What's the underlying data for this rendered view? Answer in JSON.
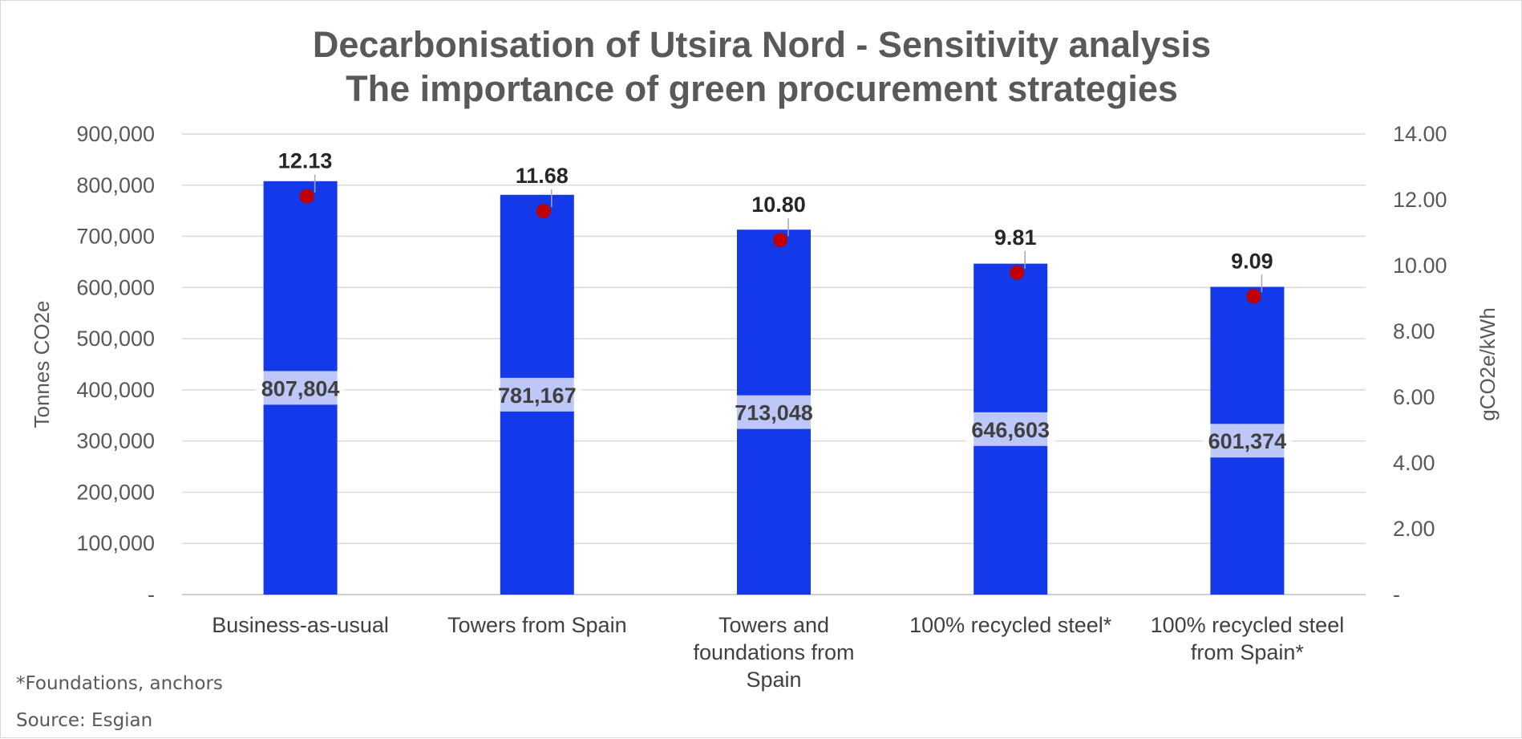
{
  "chart_data": {
    "type": "bar",
    "title": [
      "Decarbonisation of Utsira Nord - Sensitivity analysis",
      "The importance of green procurement strategies"
    ],
    "categories": [
      [
        "Business-as-usual"
      ],
      [
        "Towers from Spain"
      ],
      [
        "Towers and",
        "foundations from",
        "Spain"
      ],
      [
        "100% recycled steel*"
      ],
      [
        "100% recycled steel",
        "from Spain*"
      ]
    ],
    "series": [
      {
        "type": "bar",
        "axis": "left",
        "values": [
          807804,
          781167,
          713048,
          646603,
          601374
        ],
        "labels": [
          "807,804",
          "781,167",
          "713,048",
          "646,603",
          "601,374"
        ],
        "color": "#1439e8"
      },
      {
        "type": "scatter",
        "axis": "right",
        "values": [
          12.13,
          11.68,
          10.8,
          9.81,
          9.09
        ],
        "labels": [
          "12.13",
          "11.68",
          "10.80",
          "9.81",
          "9.09"
        ],
        "color": "#c00000"
      }
    ],
    "y_left": {
      "label": "Tonnes CO2e",
      "range": [
        0,
        900000
      ],
      "ticks": [
        "-",
        "100,000",
        "200,000",
        "300,000",
        "400,000",
        "500,000",
        "600,000",
        "700,000",
        "800,000",
        "900,000"
      ]
    },
    "y_right": {
      "label": "gCO2e/kWh",
      "range": [
        0,
        14
      ],
      "ticks": [
        "-",
        "2.00",
        "4.00",
        "6.00",
        "8.00",
        "10.00",
        "12.00",
        "14.00"
      ]
    },
    "grid": true,
    "legend": "none"
  },
  "notes": {
    "footnote": "*Foundations, anchors",
    "source": "Source: Esgian"
  }
}
